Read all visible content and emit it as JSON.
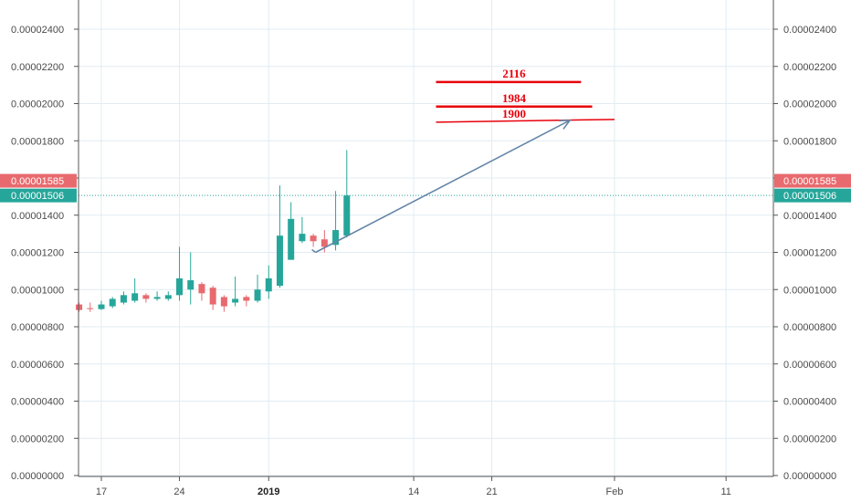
{
  "chart_data": {
    "type": "candlestick",
    "title": "",
    "ylim": [
      0,
      2.5e-05
    ],
    "y_ticks": [
      "0.00000000",
      "0.00000200",
      "0.00000400",
      "0.00000600",
      "0.00000800",
      "0.00001000",
      "0.00001200",
      "0.00001400",
      "0.00001600",
      "0.00001800",
      "0.00002000",
      "0.00002200",
      "0.00002400"
    ],
    "y_tick_values": [
      0,
      2e-06,
      4e-06,
      6e-06,
      8e-06,
      1e-05,
      1.2e-05,
      1.4e-05,
      1.6e-05,
      1.8e-05,
      2e-05,
      2.2e-05,
      2.4e-05
    ],
    "x_ticks": [
      {
        "label": "17",
        "day": 17,
        "bold": false
      },
      {
        "label": "24",
        "day": 24,
        "bold": false
      },
      {
        "label": "2019",
        "day": 32,
        "bold": true
      },
      {
        "label": "14",
        "day": 45,
        "bold": false
      },
      {
        "label": "21",
        "day": 52,
        "bold": false
      },
      {
        "label": "Feb",
        "day": 63,
        "bold": false
      },
      {
        "label": "11",
        "day": 73,
        "bold": false
      }
    ],
    "candles": [
      {
        "day": 15,
        "open": 9.2e-06,
        "high": 9.3e-06,
        "low": 8.8e-06,
        "close": 8.9e-06
      },
      {
        "day": 16,
        "open": 9e-06,
        "high": 9.3e-06,
        "low": 8.8e-06,
        "close": 8.95e-06
      },
      {
        "day": 17,
        "open": 8.95e-06,
        "high": 9.4e-06,
        "low": 8.9e-06,
        "close": 9.2e-06
      },
      {
        "day": 18,
        "open": 9.1e-06,
        "high": 9.6e-06,
        "low": 9e-06,
        "close": 9.5e-06
      },
      {
        "day": 19,
        "open": 9.3e-06,
        "high": 9.9e-06,
        "low": 9.2e-06,
        "close": 9.7e-06
      },
      {
        "day": 20,
        "open": 9.4e-06,
        "high": 1.06e-05,
        "low": 9.3e-06,
        "close": 9.8e-06
      },
      {
        "day": 21,
        "open": 9.7e-06,
        "high": 9.8e-06,
        "low": 9.3e-06,
        "close": 9.5e-06
      },
      {
        "day": 22,
        "open": 9.5e-06,
        "high": 9.9e-06,
        "low": 9.4e-06,
        "close": 9.6e-06
      },
      {
        "day": 23,
        "open": 9.5e-06,
        "high": 9.9e-06,
        "low": 9.4e-06,
        "close": 9.7e-06
      },
      {
        "day": 24,
        "open": 9.7e-06,
        "high": 1.23e-05,
        "low": 9.4e-06,
        "close": 1.06e-05
      },
      {
        "day": 25,
        "open": 1e-05,
        "high": 1.2e-05,
        "low": 9.2e-06,
        "close": 1.05e-05
      },
      {
        "day": 26,
        "open": 1.03e-05,
        "high": 1.04e-05,
        "low": 9.4e-06,
        "close": 9.8e-06
      },
      {
        "day": 27,
        "open": 1.01e-05,
        "high": 1.02e-05,
        "low": 8.9e-06,
        "close": 9.2e-06
      },
      {
        "day": 28,
        "open": 9.6e-06,
        "high": 9.7e-06,
        "low": 8.8e-06,
        "close": 9.1e-06
      },
      {
        "day": 29,
        "open": 9.3e-06,
        "high": 1.07e-05,
        "low": 9.1e-06,
        "close": 9.5e-06
      },
      {
        "day": 30,
        "open": 9.6e-06,
        "high": 9.7e-06,
        "low": 9.1e-06,
        "close": 9.4e-06
      },
      {
        "day": 31,
        "open": 9.4e-06,
        "high": 1.08e-05,
        "low": 9.3e-06,
        "close": 1e-05
      },
      {
        "day": 32,
        "open": 9.9e-06,
        "high": 1.13e-05,
        "low": 9.5e-06,
        "close": 1.06e-05
      },
      {
        "day": 33,
        "open": 1.02e-05,
        "high": 1.56e-05,
        "low": 1.01e-05,
        "close": 1.29e-05
      },
      {
        "day": 34,
        "open": 1.16e-05,
        "high": 1.47e-05,
        "low": 1.16e-05,
        "close": 1.38e-05
      },
      {
        "day": 35,
        "open": 1.26e-05,
        "high": 1.39e-05,
        "low": 1.25e-05,
        "close": 1.3e-05
      },
      {
        "day": 36,
        "open": 1.29e-05,
        "high": 1.3e-05,
        "low": 1.23e-05,
        "close": 1.26e-05
      },
      {
        "day": 37,
        "open": 1.27e-05,
        "high": 1.32e-05,
        "low": 1.2e-05,
        "close": 1.23e-05
      },
      {
        "day": 38,
        "open": 1.24e-05,
        "high": 1.53e-05,
        "low": 1.21e-05,
        "close": 1.32e-05
      },
      {
        "day": 39,
        "open": 1.29e-05,
        "high": 1.75e-05,
        "low": 1.28e-05,
        "close": 1.506e-05
      }
    ],
    "price_badges": [
      {
        "label": "0.00001585",
        "value": 1.585e-05,
        "color": "#e86a6e"
      },
      {
        "label": "0.00001506",
        "value": 1.506e-05,
        "color": "#26a69a"
      }
    ],
    "current_price_line": 1.506e-05,
    "levels": [
      {
        "label": "2116",
        "value": 2.116e-05,
        "x_start": 47,
        "x_end": 60,
        "label_day": 54
      },
      {
        "label": "1984",
        "value": 1.984e-05,
        "x_start": 47,
        "x_end": 61,
        "label_day": 54
      },
      {
        "label": "1900",
        "value": 1.9e-05,
        "x_start": 47,
        "x_end": 63,
        "label_day": 54,
        "slope_end_value": 1.915e-05
      }
    ],
    "arrow": {
      "from_day": 36.2,
      "from_value": 1.2e-05,
      "to_day": 59,
      "to_value": 1.91e-05
    },
    "colors": {
      "up": "#26a69a",
      "down": "#e86a6e",
      "level": "#e8000b",
      "arrow": "#6485a6",
      "grid": "#e1ecf2",
      "axis": "#555555"
    }
  }
}
